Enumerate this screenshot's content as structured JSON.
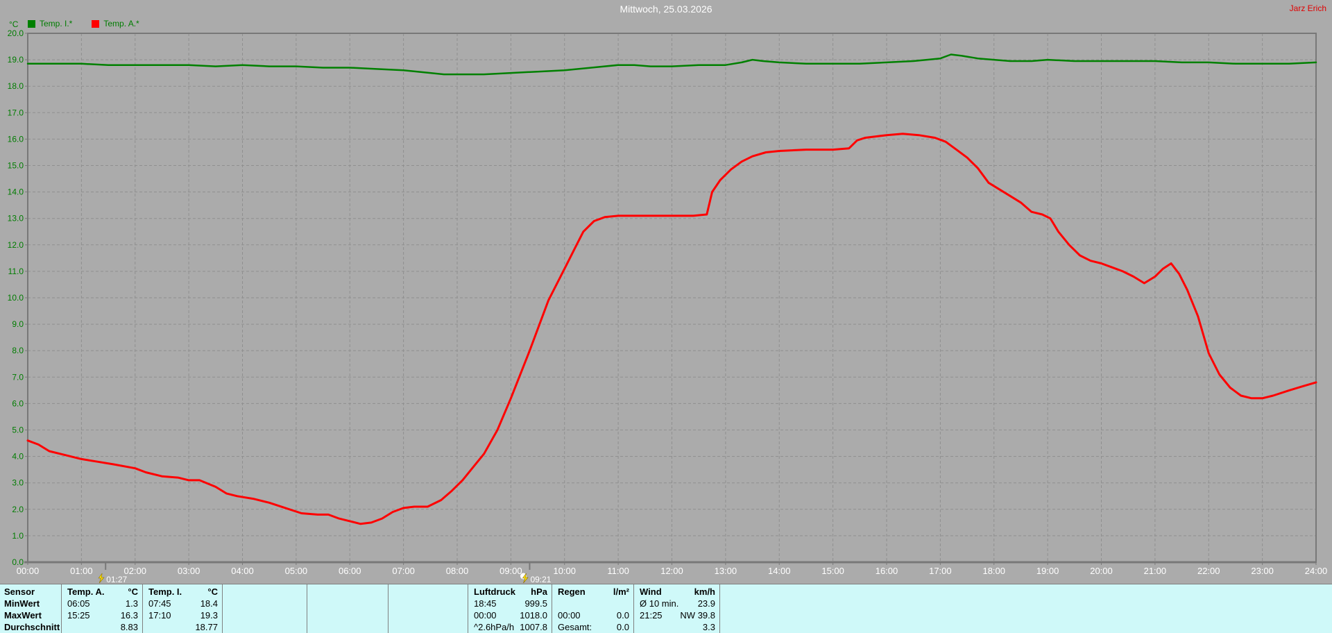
{
  "header": {
    "title": "Mittwoch, 25.03.2026",
    "author": "Jarz Erich"
  },
  "legend": {
    "items": [
      {
        "label": "Temp. I.*",
        "color": "#008000"
      },
      {
        "label": "Temp. A.*",
        "color": "#FF0000"
      }
    ]
  },
  "chart_data": {
    "type": "line",
    "unit": "°C",
    "title": "Mittwoch, 25.03.2026",
    "xlabel": "",
    "ylabel": "°C",
    "xlim": [
      0,
      24
    ],
    "ylim": [
      0,
      20
    ],
    "x_tick_interval_hours": 1,
    "y_tick_interval": 1,
    "x_tick_label_format": "HH:00",
    "y_tick_label_format": "one-decimal",
    "grid": "dashed",
    "legend_position": "top-left",
    "series": [
      {
        "name": "Temp. I.*",
        "color": "#008000",
        "width": 2.5,
        "points": [
          [
            0,
            18.85
          ],
          [
            0.5,
            18.85
          ],
          [
            1,
            18.85
          ],
          [
            1.5,
            18.8
          ],
          [
            2,
            18.8
          ],
          [
            2.5,
            18.8
          ],
          [
            3,
            18.8
          ],
          [
            3.5,
            18.75
          ],
          [
            4,
            18.8
          ],
          [
            4.5,
            18.75
          ],
          [
            5,
            18.75
          ],
          [
            5.5,
            18.7
          ],
          [
            6,
            18.7
          ],
          [
            6.5,
            18.65
          ],
          [
            7,
            18.6
          ],
          [
            7.5,
            18.5
          ],
          [
            7.75,
            18.45
          ],
          [
            8,
            18.45
          ],
          [
            8.5,
            18.45
          ],
          [
            9,
            18.5
          ],
          [
            9.5,
            18.55
          ],
          [
            10,
            18.6
          ],
          [
            10.5,
            18.7
          ],
          [
            11,
            18.8
          ],
          [
            11.3,
            18.8
          ],
          [
            11.6,
            18.75
          ],
          [
            12,
            18.75
          ],
          [
            12.5,
            18.8
          ],
          [
            13,
            18.8
          ],
          [
            13.3,
            18.9
          ],
          [
            13.5,
            19.0
          ],
          [
            13.7,
            18.95
          ],
          [
            14,
            18.9
          ],
          [
            14.5,
            18.85
          ],
          [
            15,
            18.85
          ],
          [
            15.5,
            18.85
          ],
          [
            16,
            18.9
          ],
          [
            16.5,
            18.95
          ],
          [
            17,
            19.05
          ],
          [
            17.2,
            19.2
          ],
          [
            17.4,
            19.15
          ],
          [
            17.7,
            19.05
          ],
          [
            18,
            19.0
          ],
          [
            18.3,
            18.95
          ],
          [
            18.7,
            18.95
          ],
          [
            19,
            19.0
          ],
          [
            19.5,
            18.95
          ],
          [
            20,
            18.95
          ],
          [
            20.5,
            18.95
          ],
          [
            21,
            18.95
          ],
          [
            21.5,
            18.9
          ],
          [
            22,
            18.9
          ],
          [
            22.5,
            18.85
          ],
          [
            23,
            18.85
          ],
          [
            23.5,
            18.85
          ],
          [
            24,
            18.9
          ]
        ]
      },
      {
        "name": "Temp. A.*",
        "color": "#FF0000",
        "width": 3,
        "points": [
          [
            0,
            4.6
          ],
          [
            0.2,
            4.45
          ],
          [
            0.4,
            4.2
          ],
          [
            0.7,
            4.05
          ],
          [
            1,
            3.9
          ],
          [
            1.3,
            3.8
          ],
          [
            1.6,
            3.7
          ],
          [
            2,
            3.55
          ],
          [
            2.2,
            3.4
          ],
          [
            2.5,
            3.25
          ],
          [
            2.8,
            3.2
          ],
          [
            3,
            3.1
          ],
          [
            3.2,
            3.1
          ],
          [
            3.5,
            2.85
          ],
          [
            3.7,
            2.6
          ],
          [
            3.9,
            2.5
          ],
          [
            4.2,
            2.4
          ],
          [
            4.5,
            2.25
          ],
          [
            4.8,
            2.05
          ],
          [
            5.1,
            1.85
          ],
          [
            5.4,
            1.8
          ],
          [
            5.6,
            1.8
          ],
          [
            5.8,
            1.65
          ],
          [
            6,
            1.55
          ],
          [
            6.2,
            1.45
          ],
          [
            6.4,
            1.5
          ],
          [
            6.6,
            1.65
          ],
          [
            6.8,
            1.9
          ],
          [
            7,
            2.05
          ],
          [
            7.2,
            2.1
          ],
          [
            7.45,
            2.1
          ],
          [
            7.7,
            2.35
          ],
          [
            7.9,
            2.7
          ],
          [
            8.1,
            3.1
          ],
          [
            8.3,
            3.6
          ],
          [
            8.5,
            4.1
          ],
          [
            8.75,
            5.0
          ],
          [
            9,
            6.2
          ],
          [
            9.35,
            8.0
          ],
          [
            9.7,
            9.9
          ],
          [
            10,
            11.1
          ],
          [
            10.2,
            11.9
          ],
          [
            10.35,
            12.5
          ],
          [
            10.55,
            12.9
          ],
          [
            10.75,
            13.05
          ],
          [
            11,
            13.1
          ],
          [
            11.5,
            13.1
          ],
          [
            12,
            13.1
          ],
          [
            12.4,
            13.1
          ],
          [
            12.65,
            13.15
          ],
          [
            12.75,
            14.0
          ],
          [
            12.9,
            14.45
          ],
          [
            13.1,
            14.85
          ],
          [
            13.3,
            15.15
          ],
          [
            13.5,
            15.35
          ],
          [
            13.75,
            15.5
          ],
          [
            14,
            15.55
          ],
          [
            14.5,
            15.6
          ],
          [
            15,
            15.6
          ],
          [
            15.3,
            15.65
          ],
          [
            15.45,
            15.95
          ],
          [
            15.6,
            16.05
          ],
          [
            15.8,
            16.1
          ],
          [
            16,
            16.15
          ],
          [
            16.3,
            16.2
          ],
          [
            16.6,
            16.15
          ],
          [
            16.9,
            16.05
          ],
          [
            17.1,
            15.9
          ],
          [
            17.3,
            15.6
          ],
          [
            17.5,
            15.3
          ],
          [
            17.7,
            14.9
          ],
          [
            17.9,
            14.35
          ],
          [
            18.1,
            14.1
          ],
          [
            18.3,
            13.85
          ],
          [
            18.5,
            13.6
          ],
          [
            18.7,
            13.25
          ],
          [
            18.9,
            13.15
          ],
          [
            19.05,
            13.0
          ],
          [
            19.2,
            12.5
          ],
          [
            19.4,
            12.0
          ],
          [
            19.6,
            11.6
          ],
          [
            19.8,
            11.4
          ],
          [
            20,
            11.3
          ],
          [
            20.2,
            11.15
          ],
          [
            20.4,
            11.0
          ],
          [
            20.6,
            10.8
          ],
          [
            20.8,
            10.55
          ],
          [
            21,
            10.8
          ],
          [
            21.15,
            11.1
          ],
          [
            21.3,
            11.3
          ],
          [
            21.45,
            10.9
          ],
          [
            21.6,
            10.3
          ],
          [
            21.8,
            9.3
          ],
          [
            22,
            7.9
          ],
          [
            22.2,
            7.1
          ],
          [
            22.4,
            6.6
          ],
          [
            22.6,
            6.3
          ],
          [
            22.8,
            6.2
          ],
          [
            23,
            6.2
          ],
          [
            23.2,
            6.3
          ],
          [
            23.5,
            6.5
          ],
          [
            23.75,
            6.65
          ],
          [
            24,
            6.8
          ]
        ]
      }
    ],
    "markers": [
      {
        "label": "01:27",
        "hour": 1.45,
        "icon": "lightning-icon"
      },
      {
        "label": "09:21",
        "hour": 9.35,
        "icon": "cloud-lightning-icon"
      }
    ]
  },
  "summary_table": {
    "row_labels": [
      "Sensor",
      "MinWert",
      "MaxWert",
      "Durchschnitt"
    ],
    "groups": [
      {
        "label": "Temp. A.",
        "unit": "°C",
        "rows": [
          [
            "06:05",
            "1.3"
          ],
          [
            "15:25",
            "16.3"
          ],
          [
            "",
            "8.83"
          ]
        ]
      },
      {
        "label": "Temp. I.",
        "unit": "°C",
        "rows": [
          [
            "07:45",
            "18.4"
          ],
          [
            "17:10",
            "19.3"
          ],
          [
            "",
            "18.77"
          ]
        ]
      },
      {
        "label": "",
        "unit": "",
        "rows": [
          [
            "",
            ""
          ],
          [
            "",
            ""
          ],
          [
            "",
            ""
          ]
        ]
      },
      {
        "label": "",
        "unit": "",
        "rows": [
          [
            "",
            ""
          ],
          [
            "",
            ""
          ],
          [
            "",
            ""
          ]
        ]
      },
      {
        "label": "",
        "unit": "",
        "rows": [
          [
            "",
            ""
          ],
          [
            "",
            ""
          ],
          [
            "",
            ""
          ]
        ]
      },
      {
        "label": "Luftdruck",
        "unit": "hPa",
        "rows": [
          [
            "18:45",
            "999.5"
          ],
          [
            "00:00",
            "1018.0"
          ],
          [
            "^2.6hPa/h",
            "1007.8"
          ]
        ]
      },
      {
        "label": "Regen",
        "unit": "l/m²",
        "rows": [
          [
            "",
            ""
          ],
          [
            "00:00",
            "0.0"
          ],
          [
            "Gesamt:",
            "0.0"
          ]
        ]
      },
      {
        "label": "Wind",
        "unit": "km/h",
        "rows": [
          [
            "Ø 10 min.",
            "23.9"
          ],
          [
            "21:25",
            "NW 39.8"
          ],
          [
            "",
            "3.3"
          ]
        ]
      }
    ]
  },
  "colors": {
    "background": "#ABABAB",
    "grid": "#8F8F8F",
    "axis": "#787878",
    "y_label": "#007C00",
    "x_label": "#FFFFFF",
    "title": "#FFFFFF",
    "author": "#E00000",
    "table_background": "#CFF9F9",
    "marker_icon": "#FFE000",
    "temp_i": "#008000",
    "temp_a": "#FF0000"
  }
}
